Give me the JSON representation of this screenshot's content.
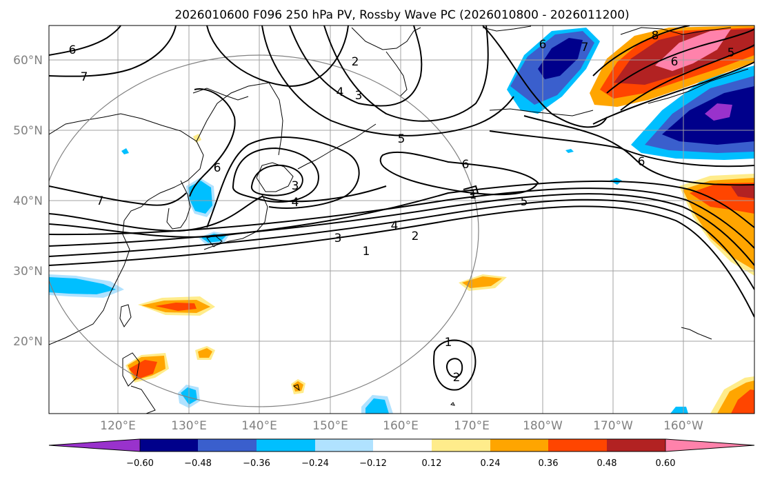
{
  "title": "2026010600 F096 250 hPa PV, Rossby Wave PC (2026010800 - 2026011200)",
  "map": {
    "lon_labels": [
      "120°E",
      "130°E",
      "140°E",
      "150°E",
      "160°E",
      "170°E",
      "180°W",
      "170°W",
      "160°W"
    ],
    "lat_labels": [
      "60°N",
      "50°N",
      "40°N",
      "30°N",
      "20°N"
    ],
    "contour_labels": [
      "6",
      "7",
      "7",
      "6",
      "4",
      "3",
      "2",
      "5",
      "6",
      "3",
      "4",
      "5",
      "4",
      "3",
      "2",
      "1",
      "1",
      "6",
      "7",
      "6",
      "8",
      "5",
      "6",
      "1",
      "2"
    ]
  },
  "colorbar": {
    "ticks": [
      "−0.60",
      "−0.48",
      "−0.36",
      "−0.24",
      "−0.12",
      "0.12",
      "0.24",
      "0.36",
      "0.48",
      "0.60"
    ],
    "colors": [
      "#9932cc",
      "#00008b",
      "#3a5fcd",
      "#00bfff",
      "#b0e2ff",
      "#ffffff",
      "#ffec8b",
      "#ffa500",
      "#ff4500",
      "#b22222",
      "#ff82ab"
    ]
  }
}
